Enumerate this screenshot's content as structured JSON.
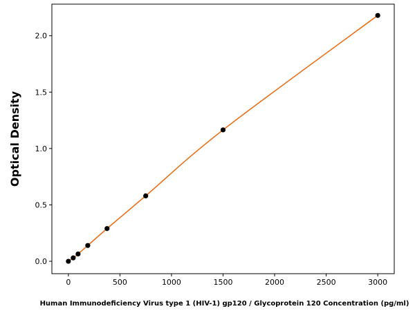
{
  "chart_data": {
    "type": "line",
    "title": "",
    "xlabel": "Human Immunodeficiency Virus type 1 (HIV-1) gp120 / Glycoprotein 120 Concentration (pg/ml)",
    "ylabel": "Optical Density",
    "xlim": [
      -160,
      3160
    ],
    "ylim": [
      -0.11,
      2.28
    ],
    "x_ticks": [
      0,
      500,
      1000,
      1500,
      2000,
      2500,
      3000
    ],
    "y_ticks": [
      0.0,
      0.5,
      1.0,
      1.5,
      2.0
    ],
    "x_tick_labels": [
      "0",
      "500",
      "1000",
      "1500",
      "2000",
      "2500",
      "3000"
    ],
    "y_tick_labels": [
      "0.0",
      "0.5",
      "1.0",
      "1.5",
      "2.0"
    ],
    "grid": false,
    "series": [
      {
        "points": [
          {
            "x": 0,
            "y": 0.0
          },
          {
            "x": 47,
            "y": 0.03
          },
          {
            "x": 94,
            "y": 0.065
          },
          {
            "x": 188,
            "y": 0.14
          },
          {
            "x": 375,
            "y": 0.29
          },
          {
            "x": 750,
            "y": 0.58
          },
          {
            "x": 1500,
            "y": 1.165
          },
          {
            "x": 3000,
            "y": 2.18
          }
        ],
        "marker_color": "#000000",
        "line_color": "#e8711a"
      }
    ]
  }
}
